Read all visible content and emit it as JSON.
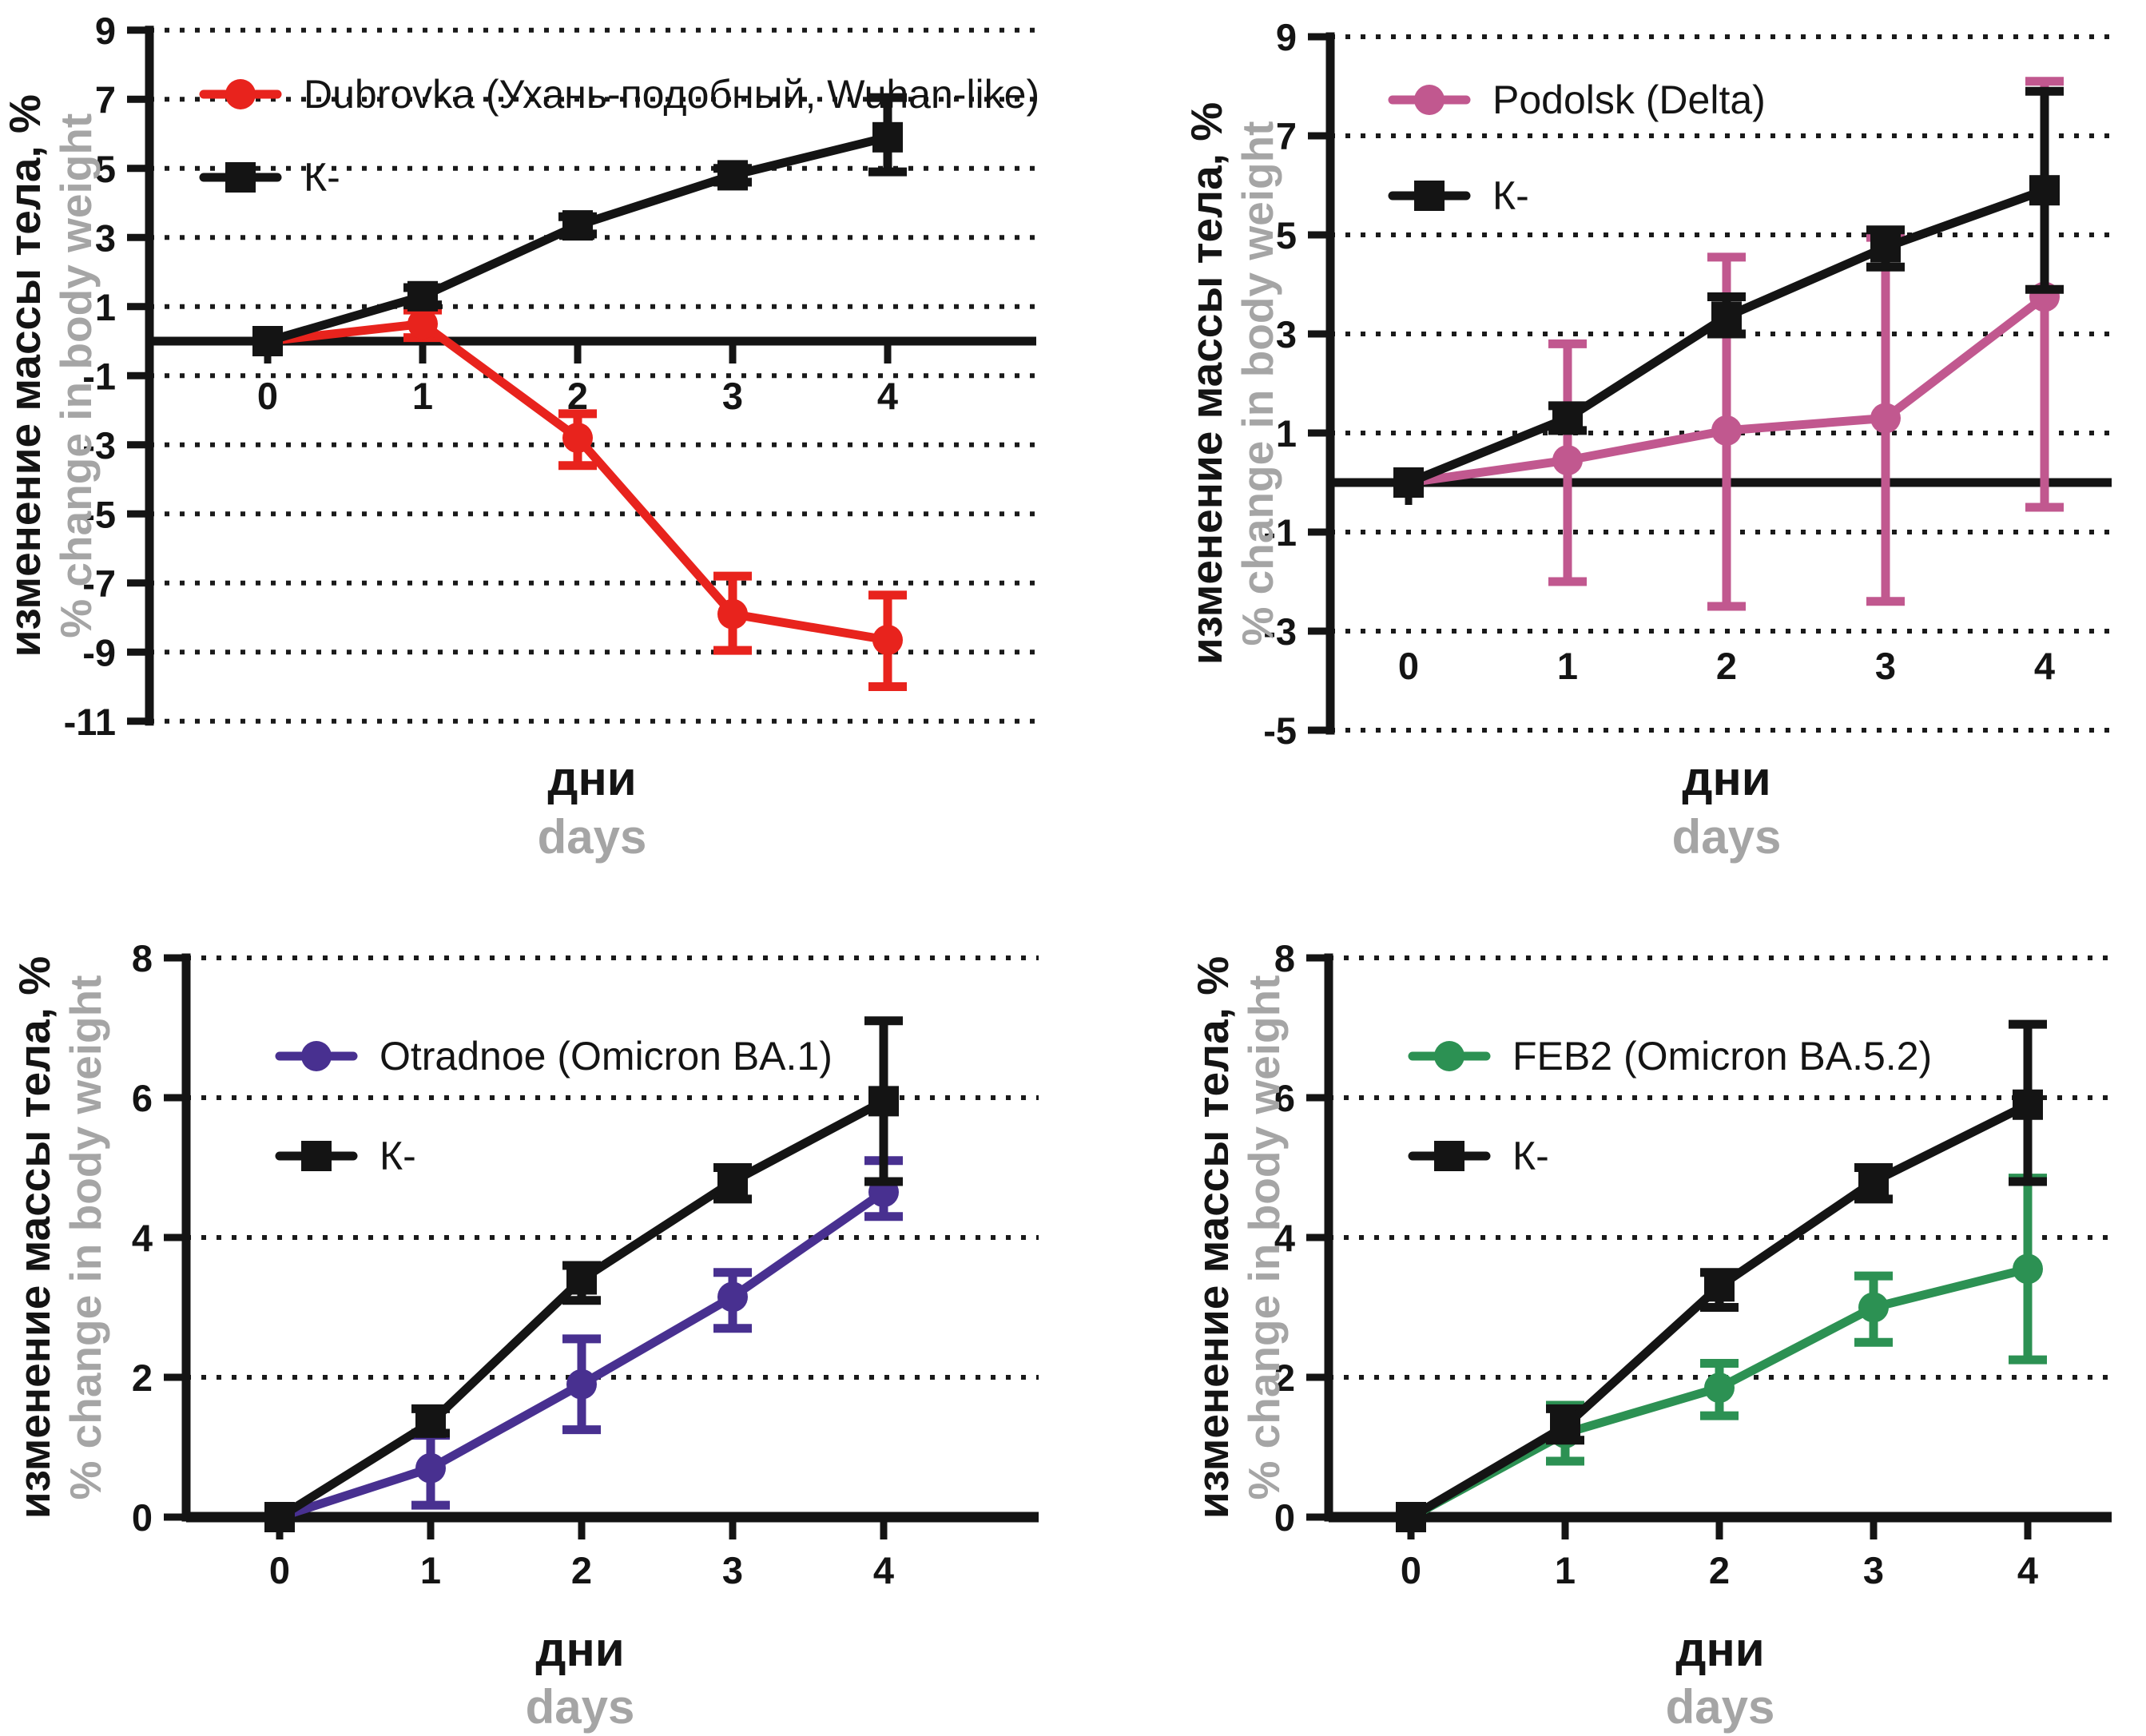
{
  "figure": {
    "xlabel_ru": "дни",
    "xlabel_en": "days",
    "ylabel_ru": "изменение массы тела, %",
    "ylabel_en": "% change in body weight",
    "colors": {
      "control": "#141414",
      "wuhan": "#e8231d",
      "delta": "#c1588f",
      "omicron_ba1": "#483090",
      "omicron_ba52": "#2c9153",
      "secondary_text": "#a5a5a5"
    }
  },
  "chart_data": [
    {
      "id": "wuhan",
      "type": "line",
      "x": [
        0,
        1,
        2,
        3,
        4
      ],
      "xlabel_ru": "дни",
      "xlabel_en": "days",
      "ylabel_ru": "изменение массы тела, %",
      "ylabel_en": "% change in body weight",
      "ylim": [
        -11,
        9
      ],
      "yticks": [
        9,
        7,
        5,
        3,
        1,
        -1,
        -3,
        -5,
        -7,
        -9,
        -11
      ],
      "grid": "dotted",
      "zero_axis": true,
      "legend_position": "top-left",
      "draw_order": [
        0,
        1
      ],
      "series": [
        {
          "name": "Dubrovka (Ухань-подобный, Wuhan-like)",
          "color": "#e8231d",
          "marker": "circle",
          "values": [
            0,
            0.5,
            -2.8,
            -7.9,
            -8.65
          ],
          "err_low": [
            0,
            0.1,
            -3.6,
            -8.95,
            -10.0
          ],
          "err_high": [
            0,
            0.9,
            -2.1,
            -6.8,
            -7.35
          ]
        },
        {
          "name": "К-",
          "color": "#141414",
          "marker": "square",
          "values": [
            0,
            1.3,
            3.35,
            4.8,
            5.9
          ],
          "err_low": [
            0,
            1.05,
            3.1,
            4.6,
            4.9
          ],
          "err_high": [
            0,
            1.55,
            3.6,
            5.0,
            7.05
          ]
        }
      ]
    },
    {
      "id": "delta",
      "type": "line",
      "x": [
        0,
        1,
        2,
        3,
        4
      ],
      "xlabel_ru": "дни",
      "xlabel_en": "days",
      "ylabel_ru": "изменение массы тела, %",
      "ylabel_en": "% change in body weight",
      "ylim": [
        -5,
        9
      ],
      "yticks": [
        9,
        7,
        5,
        3,
        1,
        -1,
        -3,
        -5
      ],
      "grid": "dotted",
      "zero_axis": true,
      "legend_position": "top-left",
      "draw_order": [
        0,
        1
      ],
      "series": [
        {
          "name": "Podolsk (Delta)",
          "color": "#c1588f",
          "marker": "circle",
          "values": [
            0,
            0.45,
            1.05,
            1.3,
            3.75
          ],
          "err_low": [
            0,
            -2.0,
            -2.5,
            -2.4,
            -0.5
          ],
          "err_high": [
            0,
            2.8,
            4.55,
            4.95,
            8.1
          ]
        },
        {
          "name": "К-",
          "color": "#141414",
          "marker": "square",
          "values": [
            0,
            1.3,
            3.35,
            4.75,
            5.9
          ],
          "err_low": [
            0,
            1.05,
            3.0,
            4.35,
            3.9
          ],
          "err_high": [
            0,
            1.55,
            3.75,
            5.1,
            7.9
          ]
        }
      ]
    },
    {
      "id": "omicron_ba1",
      "type": "line",
      "x": [
        0,
        1,
        2,
        3,
        4
      ],
      "xlabel_ru": "дни",
      "xlabel_en": "days",
      "ylabel_ru": "изменение массы тела, %",
      "ylabel_en": "% change in body weight",
      "ylim": [
        0,
        8
      ],
      "yticks": [
        8,
        6,
        4,
        2,
        0
      ],
      "grid": "dotted",
      "zero_axis": false,
      "legend_position": "top-left",
      "draw_order": [
        0,
        1
      ],
      "series": [
        {
          "name": "Otradnoe (Omicron BA.1)",
          "color": "#483090",
          "marker": "circle",
          "values": [
            0,
            0.7,
            1.9,
            3.15,
            4.65
          ],
          "err_low": [
            0,
            0.17,
            1.25,
            2.7,
            4.3
          ],
          "err_high": [
            0,
            1.17,
            2.55,
            3.5,
            5.1
          ]
        },
        {
          "name": "К-",
          "color": "#141414",
          "marker": "square",
          "values": [
            0,
            1.35,
            3.4,
            4.8,
            5.95
          ],
          "err_low": [
            0,
            1.2,
            3.1,
            4.55,
            4.8
          ],
          "err_high": [
            0,
            1.55,
            3.6,
            5.0,
            7.1
          ]
        }
      ]
    },
    {
      "id": "omicron_ba52",
      "type": "line",
      "x": [
        0,
        1,
        2,
        3,
        4
      ],
      "xlabel_ru": "дни",
      "xlabel_en": "days",
      "ylabel_ru": "изменение массы тела, %",
      "ylabel_en": "% change in body weight",
      "ylim": [
        0,
        8
      ],
      "yticks": [
        8,
        6,
        4,
        2,
        0
      ],
      "grid": "dotted",
      "zero_axis": false,
      "legend_position": "top-left",
      "draw_order": [
        0,
        1
      ],
      "series": [
        {
          "name": "FEB2 (Omicron BA.5.2)",
          "color": "#2c9153",
          "marker": "circle",
          "values": [
            0,
            1.2,
            1.85,
            3.0,
            3.55
          ],
          "err_low": [
            0,
            0.8,
            1.45,
            2.5,
            2.25
          ],
          "err_high": [
            0,
            1.6,
            2.2,
            3.45,
            4.85
          ]
        },
        {
          "name": "К-",
          "color": "#141414",
          "marker": "square",
          "values": [
            0,
            1.3,
            3.3,
            4.8,
            5.9
          ],
          "err_low": [
            0,
            1.1,
            3.0,
            4.55,
            4.8
          ],
          "err_high": [
            0,
            1.55,
            3.5,
            5.0,
            7.05
          ]
        }
      ]
    }
  ]
}
